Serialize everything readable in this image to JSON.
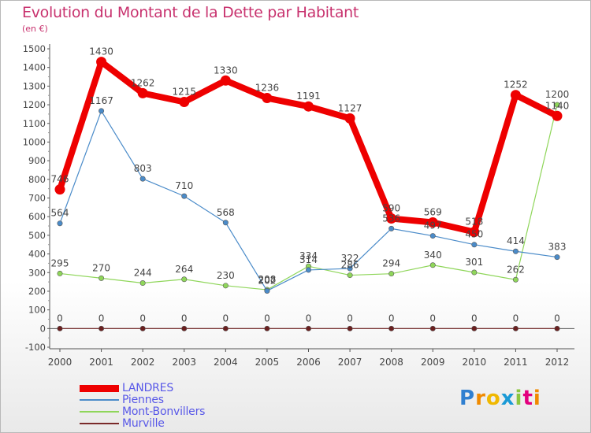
{
  "chart_data": {
    "type": "line",
    "title": "Evolution du Montant de la Dette par Habitant",
    "unit_label": "(en €)",
    "x": [
      "2000",
      "2001",
      "2002",
      "2003",
      "2004",
      "2005",
      "2006",
      "2007",
      "2008",
      "2009",
      "2010",
      "2011",
      "2012"
    ],
    "ylim": [
      -100,
      1500
    ],
    "yticks": [
      -100,
      0,
      100,
      200,
      300,
      400,
      500,
      600,
      700,
      800,
      900,
      1000,
      1100,
      1200,
      1300,
      1400,
      1500
    ],
    "grid": false,
    "legend_position": "bottom-left",
    "series": [
      {
        "name": "LANDRES",
        "color": "#ee0000",
        "values": [
          746,
          1430,
          1262,
          1215,
          1330,
          1236,
          1191,
          1127,
          590,
          569,
          518,
          1252,
          1140
        ]
      },
      {
        "name": "Piennes",
        "color": "#4a8bc9",
        "values": [
          564,
          1167,
          803,
          710,
          568,
          202,
          314,
          322,
          536,
          497,
          450,
          414,
          383
        ]
      },
      {
        "name": "Mont-Bonvillers",
        "color": "#8fd65a",
        "values": [
          295,
          270,
          244,
          264,
          230,
          208,
          334,
          286,
          294,
          340,
          301,
          262,
          1200
        ]
      },
      {
        "name": "Murville",
        "color": "#7a2a2a",
        "values": [
          0,
          0,
          0,
          0,
          0,
          0,
          0,
          0,
          0,
          0,
          0,
          0,
          0
        ]
      }
    ]
  },
  "logo": {
    "letters": [
      "P",
      "r",
      "o",
      "x",
      "i",
      "t",
      "i"
    ],
    "colors": [
      "#2f7fd0",
      "#f08a00",
      "#f0b800",
      "#1a9ad6",
      "#8cc63f",
      "#e3007e",
      "#f08a00"
    ]
  }
}
